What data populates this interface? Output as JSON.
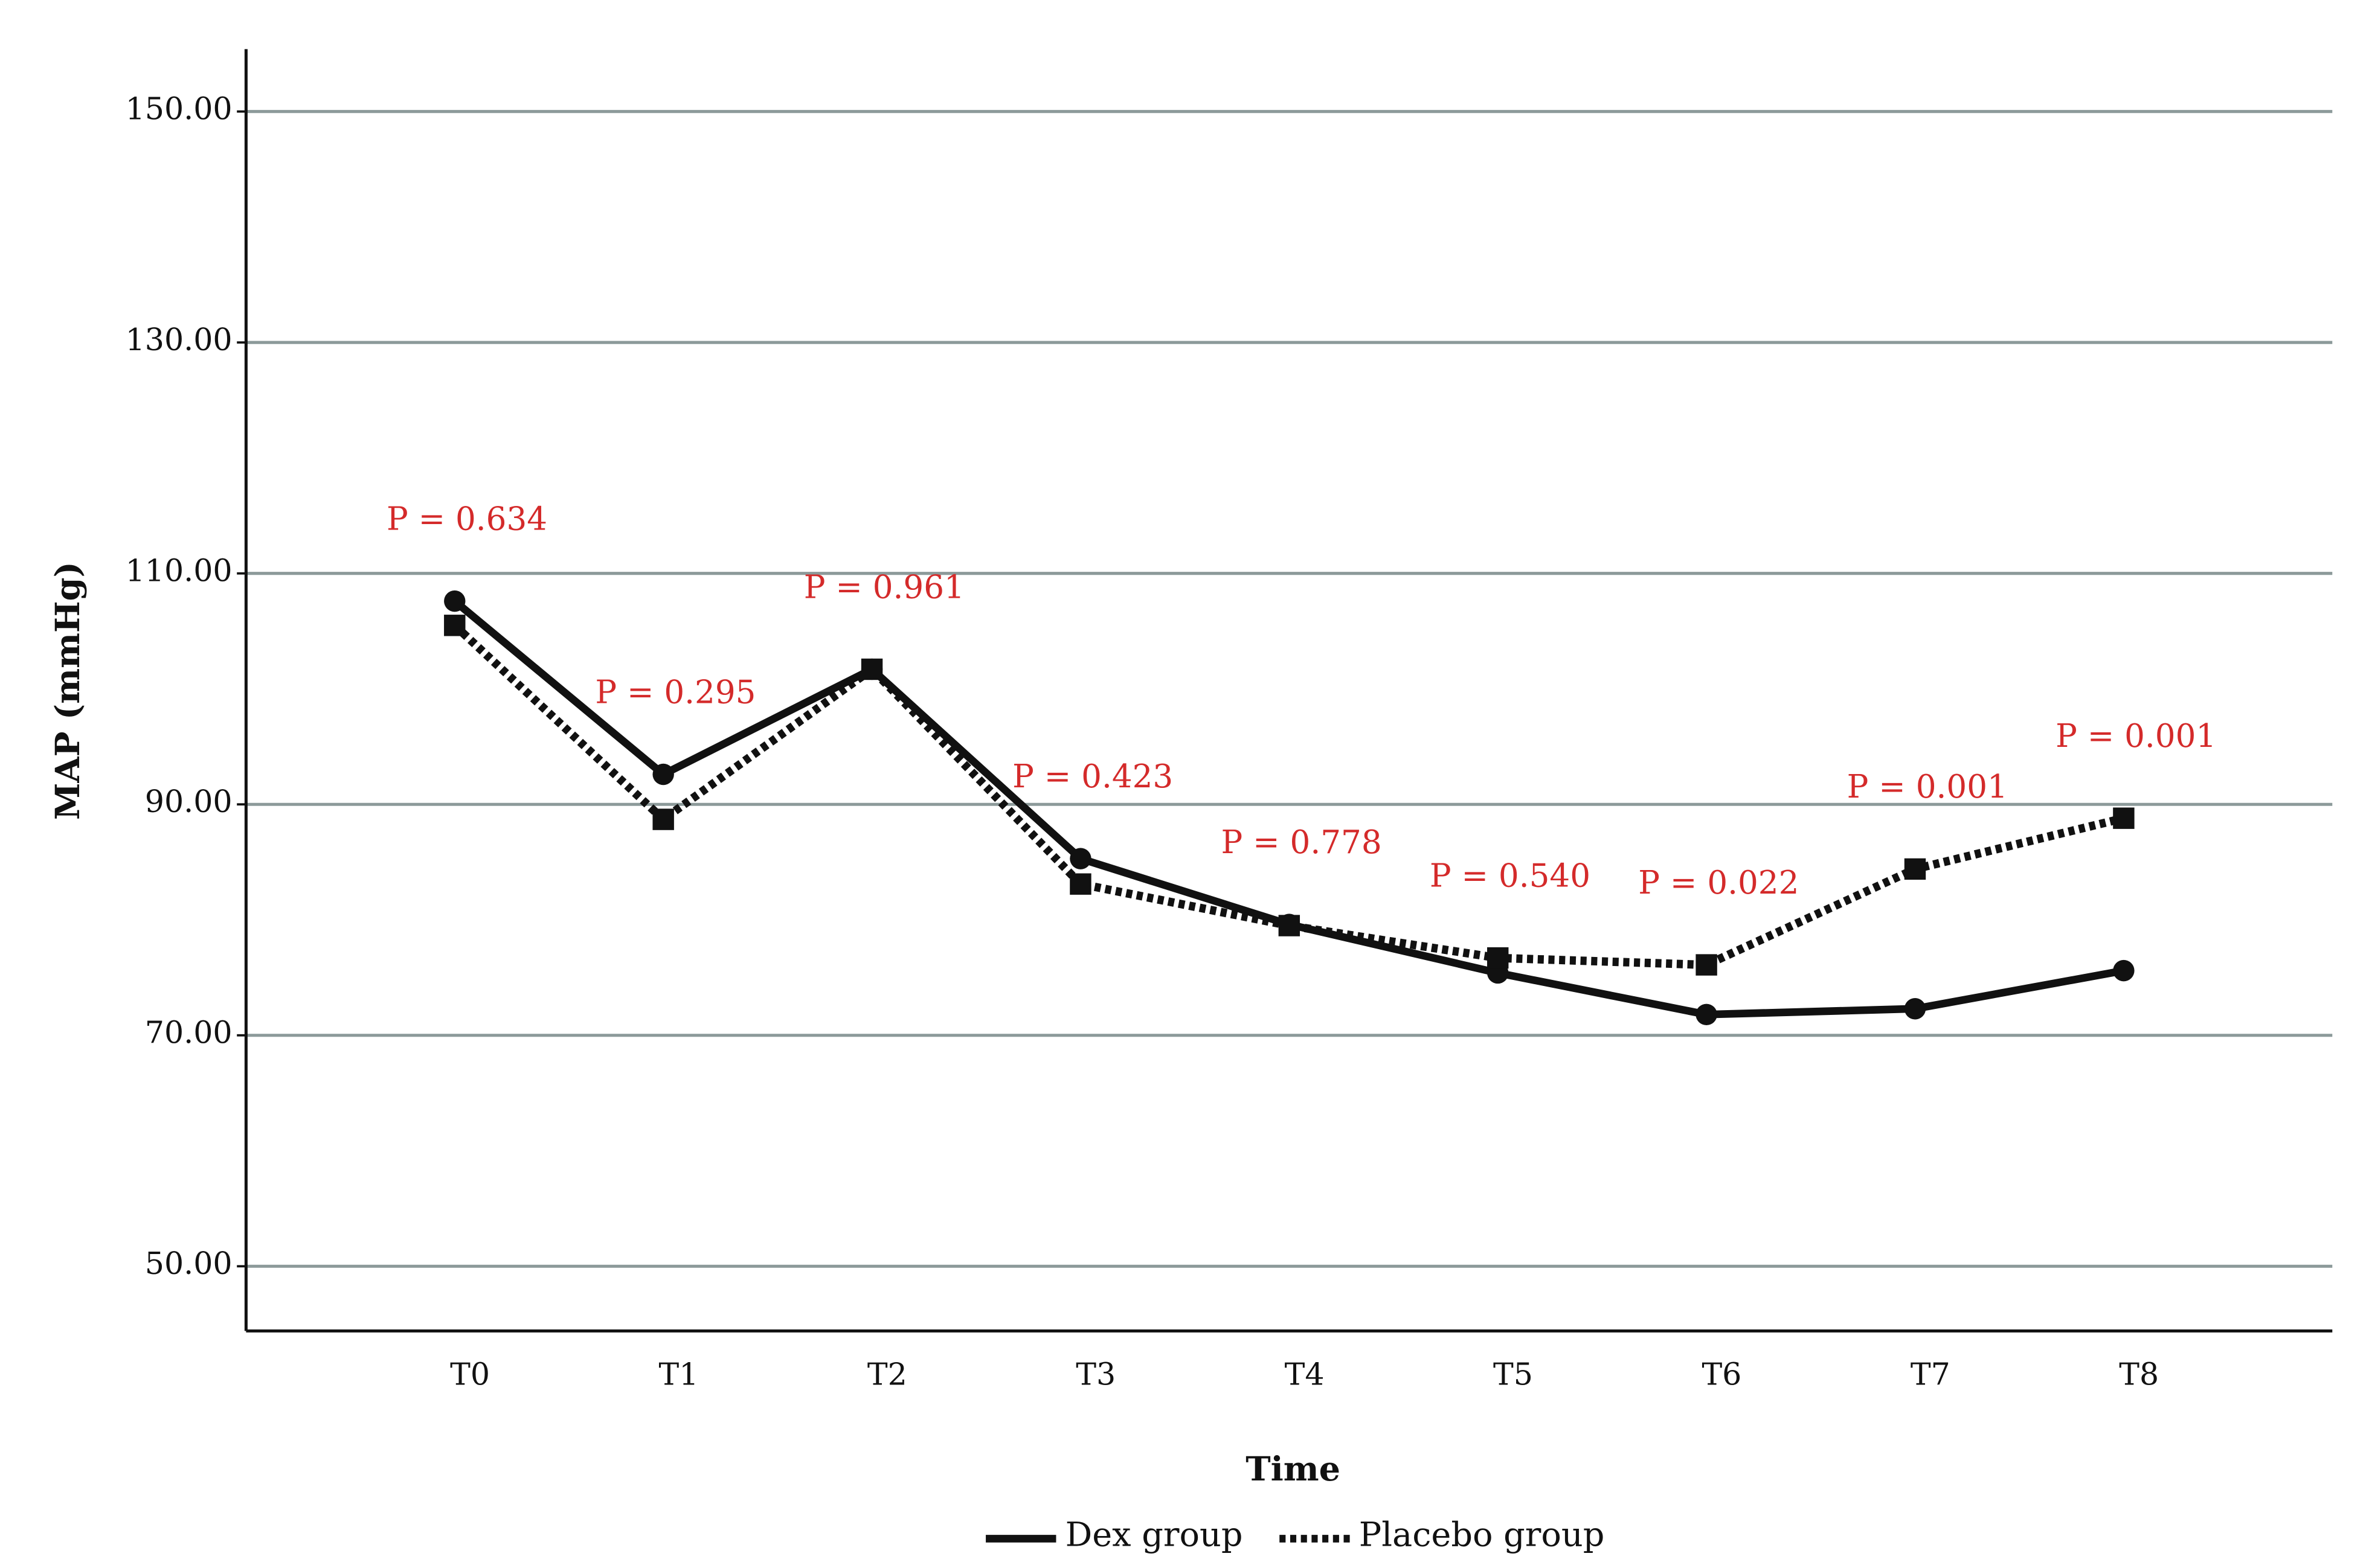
{
  "chart_data": {
    "type": "line",
    "x_label": "Time",
    "y_label": "MAP (mmHg)",
    "categories": [
      "T0",
      "T1",
      "T2",
      "T3",
      "T4",
      "T5",
      "T6",
      "T7",
      "T8"
    ],
    "series": [
      {
        "name": "Dex group",
        "color": "#111111",
        "values": [
          107.6,
          92.6,
          101.7,
          85.3,
          79.6,
          75.4,
          71.8,
          72.3,
          75.6
        ]
      },
      {
        "name": "Placebo group",
        "color": "#111111",
        "values": [
          105.5,
          88.7,
          101.7,
          83.1,
          79.5,
          76.7,
          76.1,
          84.4,
          88.8
        ]
      }
    ],
    "annotations": [
      "P = 0.634",
      "P = 0.295",
      "P = 0.961",
      "P = 0.423",
      "P = 0.778",
      "P = 0.540",
      "P = 0.022",
      "P = 0.001",
      "P = 0.001"
    ],
    "ylim": [
      44.4,
      155.4
    ],
    "yticks": [
      {
        "value": 50,
        "label": "50.00"
      },
      {
        "value": 70,
        "label": "70.00"
      },
      {
        "value": 90,
        "label": "90.00"
      },
      {
        "value": 110,
        "label": "110.00"
      },
      {
        "value": 130,
        "label": "130.00"
      },
      {
        "value": 150,
        "label": "150.00"
      }
    ],
    "grid": true,
    "legend": "bottom"
  }
}
